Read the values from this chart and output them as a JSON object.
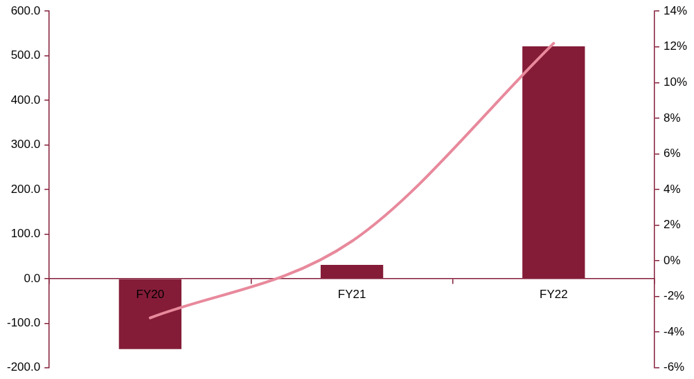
{
  "chart_data": {
    "type": "bar",
    "categories": [
      "FY20",
      "FY21",
      "FY22"
    ],
    "series": [
      {
        "color": "#841c38",
        "values": [
          -158,
          31,
          521
        ],
        "axis": "y"
      },
      {
        "type": "line",
        "color": "#e8899c",
        "values": [
          -3.2,
          1.1,
          12.2
        ],
        "axis": "y2"
      }
    ],
    "ylim": [
      -200,
      600
    ],
    "yticks": [
      {
        "value": -200,
        "label": "-200.0"
      },
      {
        "value": -100,
        "label": "-100.0"
      },
      {
        "value": 0,
        "label": "0.0"
      },
      {
        "value": 100,
        "label": "100.0"
      },
      {
        "value": 200,
        "label": "200.0"
      },
      {
        "value": 300,
        "label": "300.0"
      },
      {
        "value": 400,
        "label": "400.0"
      },
      {
        "value": 500,
        "label": "500.0"
      },
      {
        "value": 600,
        "label": "600.0"
      }
    ],
    "y2lim": [
      -6,
      14
    ],
    "y2ticks": [
      {
        "value": -6,
        "label": "-6%"
      },
      {
        "value": -4,
        "label": "-4%"
      },
      {
        "value": -2,
        "label": "-2%"
      },
      {
        "value": 0,
        "label": "0%"
      },
      {
        "value": 2,
        "label": "2%"
      },
      {
        "value": 4,
        "label": "4%"
      },
      {
        "value": 6,
        "label": "6%"
      },
      {
        "value": 8,
        "label": "8%"
      },
      {
        "value": 10,
        "label": "10%"
      },
      {
        "value": 12,
        "label": "12%"
      },
      {
        "value": 14,
        "label": "14%"
      }
    ],
    "grid": false,
    "legend": false,
    "marker": "none",
    "line_style": "solid"
  }
}
